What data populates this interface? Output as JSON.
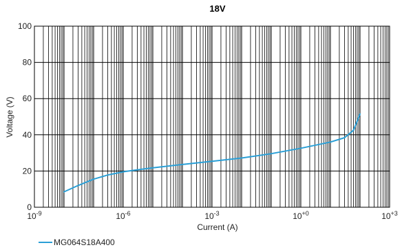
{
  "chart_data": {
    "type": "line",
    "title": "18V",
    "xlabel": "Current (A)",
    "ylabel": "Voltage (V)",
    "xscale": "log",
    "xlim": [
      1e-09,
      1000
    ],
    "ylim": [
      0,
      100
    ],
    "grid": true,
    "x_tick_labels": [
      {
        "base": "10",
        "exp": "-9"
      },
      {
        "base": "10",
        "exp": "-6"
      },
      {
        "base": "10",
        "exp": "-3"
      },
      {
        "base": "10",
        "exp": "+0"
      },
      {
        "base": "10",
        "exp": "+3"
      }
    ],
    "y_tick_labels": [
      "0",
      "20",
      "40",
      "60",
      "80",
      "100"
    ],
    "series": [
      {
        "name": "MG064S18A400",
        "color": "#2a9fd6",
        "x": [
          1e-08,
          3e-08,
          1e-07,
          3e-07,
          1e-06,
          3e-06,
          1e-05,
          0.0001,
          0.001,
          0.01,
          0.1,
          1,
          10,
          30,
          60,
          100
        ],
        "y": [
          8.5,
          12,
          15.5,
          17.8,
          19.6,
          20.7,
          21.8,
          23.6,
          25.4,
          27.2,
          29.6,
          32.6,
          36.0,
          38.4,
          42.5,
          51.5
        ]
      }
    ],
    "legend_position": "bottom-left"
  }
}
